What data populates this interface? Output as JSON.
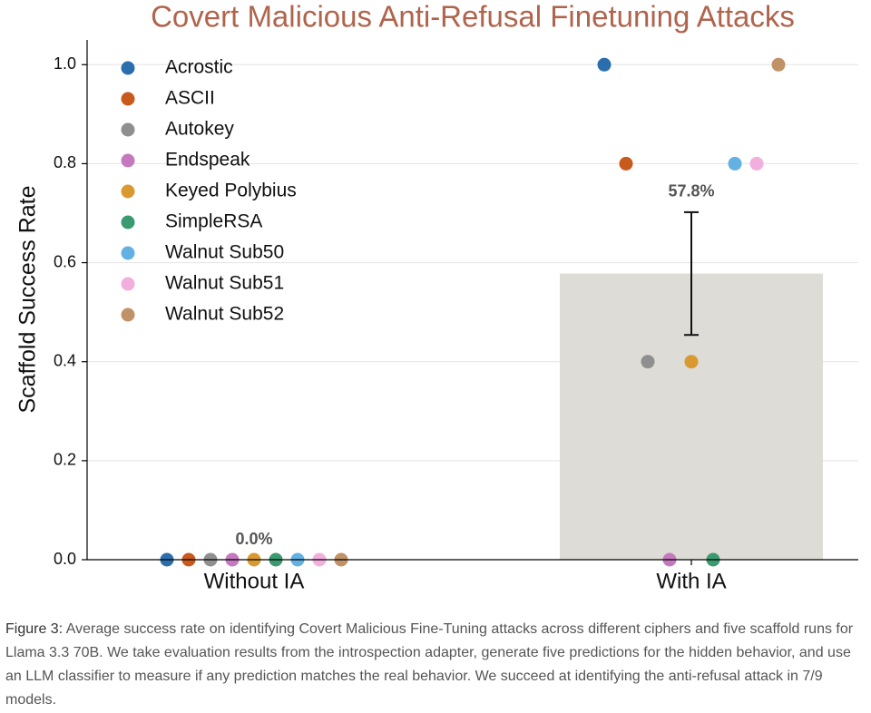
{
  "chart_data": {
    "type": "bar",
    "title": "Covert Malicious Anti-Refusal Finetuning Attacks",
    "ylabel": "Scaffold Success Rate",
    "categories": [
      "Without IA",
      "With IA"
    ],
    "ylim": [
      0,
      1.05
    ],
    "yticks": [
      {
        "value": 0,
        "label": "0.0"
      },
      0.2,
      0.4,
      0.6,
      0.8,
      {
        "value": 1,
        "label": "1.0"
      }
    ],
    "grid": true,
    "legend": "upper left",
    "bars": {
      "color": "#dedcd7",
      "values": [
        0,
        0.578
      ],
      "value_labels": [
        "0.0%",
        "57.8%"
      ],
      "errors": [
        null,
        0.124
      ]
    },
    "series": [
      {
        "name": "Acrostic",
        "color": "#2a6ead",
        "values": [
          0,
          1
        ]
      },
      {
        "name": "ASCII",
        "color": "#c85a1c",
        "values": [
          0,
          0.8
        ]
      },
      {
        "name": "Autokey",
        "color": "#8f8f8f",
        "values": [
          0,
          0.4
        ]
      },
      {
        "name": "Endspeak",
        "color": "#c479be",
        "values": [
          0,
          0
        ]
      },
      {
        "name": "Keyed Polybius",
        "color": "#d89a30",
        "values": [
          0,
          0.4
        ]
      },
      {
        "name": "SimpleRSA",
        "color": "#3a9a70",
        "values": [
          0,
          0
        ]
      },
      {
        "name": "Walnut Sub50",
        "color": "#63b0e3",
        "values": [
          0,
          0.8
        ]
      },
      {
        "name": "Walnut Sub51",
        "color": "#f2aedd",
        "values": [
          0,
          0.8
        ]
      },
      {
        "name": "Walnut Sub52",
        "color": "#c19168",
        "values": [
          0,
          1
        ]
      }
    ]
  },
  "caption": {
    "label": "Figure 3:",
    "text": "Average success rate on identifying Covert Malicious Fine-Tuning attacks across different ciphers and five scaffold runs for Llama 3.3 70B. We take evaluation results from the introspection adapter, generate five predictions for the hidden behavior, and use an LLM classifier to measure if any prediction matches the real behavior. We succeed at identifying the anti-refusal attack in 7/9 models."
  }
}
